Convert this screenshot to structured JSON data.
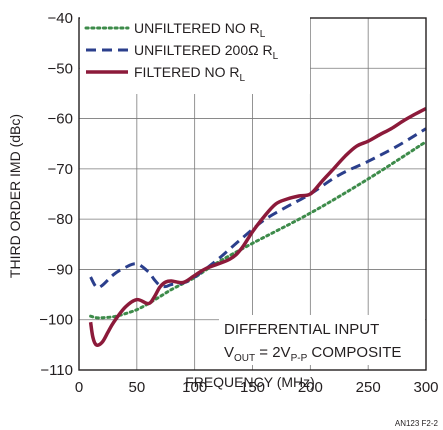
{
  "chart_data": {
    "type": "line",
    "xlabel": "FREQUENCY (MHz)",
    "ylabel": "THIRD ORDER IMD (dBc)",
    "xlim": [
      0,
      300
    ],
    "ylim": [
      -110,
      -40
    ],
    "xticks": [
      0,
      50,
      100,
      150,
      200,
      250,
      300
    ],
    "yticks": [
      -40,
      -50,
      -60,
      -70,
      -80,
      -90,
      -100,
      -110
    ],
    "grid": true,
    "legend_position": "top-left",
    "series": [
      {
        "name": "UNFILTERED NO R",
        "name_subscript": "L",
        "color": "#3d8b4a",
        "style": "dotted",
        "x": [
          10,
          15,
          20,
          30,
          40,
          50,
          60,
          70,
          80,
          90,
          100,
          120,
          150,
          200,
          250,
          300
        ],
        "y": [
          -99.3,
          -99.6,
          -99.6,
          -99.4,
          -98.8,
          -98.0,
          -96.8,
          -95.4,
          -94.0,
          -92.8,
          -91.6,
          -88.6,
          -84.8,
          -78.8,
          -72.0,
          -64.6
        ]
      },
      {
        "name": "UNFILTERED 200Ω R",
        "name_subscript": "L",
        "color": "#2b3f8c",
        "style": "dashed",
        "x": [
          10,
          15,
          20,
          30,
          40,
          50,
          60,
          65,
          70,
          75,
          80,
          90,
          100,
          120,
          140,
          160,
          180,
          200,
          225,
          250,
          275,
          300
        ],
        "y": [
          -91.5,
          -93.5,
          -93.2,
          -91.0,
          -89.6,
          -88.9,
          -90.5,
          -92.0,
          -93.2,
          -93.4,
          -93.0,
          -92.7,
          -91.5,
          -88.0,
          -84.0,
          -80.2,
          -77.5,
          -75.0,
          -71.2,
          -68.5,
          -65.5,
          -62.0
        ]
      },
      {
        "name": "FILTERED NO R",
        "name_subscript": "L",
        "color": "#8c1a3a",
        "style": "solid",
        "x": [
          10,
          12,
          15,
          20,
          25,
          30,
          40,
          50,
          60,
          65,
          70,
          75,
          80,
          90,
          100,
          110,
          130,
          140,
          150,
          160,
          170,
          180,
          190,
          200,
          210,
          220,
          230,
          240,
          250,
          260,
          270,
          280,
          290,
          300
        ],
        "y": [
          -100.5,
          -103.5,
          -105.0,
          -104.5,
          -102.5,
          -100.5,
          -97.5,
          -96.0,
          -96.8,
          -95.5,
          -93.5,
          -92.5,
          -92.3,
          -92.6,
          -91.2,
          -89.8,
          -88.0,
          -86.0,
          -82.5,
          -79.5,
          -77.0,
          -76.0,
          -75.4,
          -75.0,
          -72.5,
          -70.0,
          -67.5,
          -65.5,
          -64.5,
          -63.2,
          -62.0,
          -60.5,
          -59.2,
          -58.0
        ]
      }
    ],
    "annotation": {
      "line1": "DIFFERENTIAL INPUT",
      "line2_prefix": "V",
      "line2_sub": "OUT",
      "line2_mid": " = 2V",
      "line2_sub2": "P-P",
      "line2_suffix": " COMPOSITE"
    },
    "figure_id": "AN123 F2-2"
  }
}
